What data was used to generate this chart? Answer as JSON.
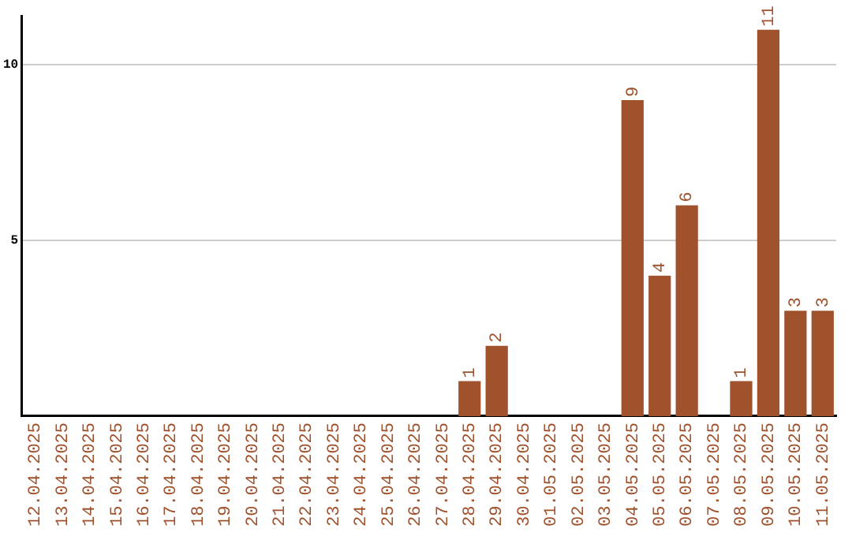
{
  "chart_data": {
    "type": "bar",
    "categories": [
      "12.04.2025",
      "13.04.2025",
      "14.04.2025",
      "15.04.2025",
      "16.04.2025",
      "17.04.2025",
      "18.04.2025",
      "19.04.2025",
      "20.04.2025",
      "21.04.2025",
      "22.04.2025",
      "23.04.2025",
      "24.04.2025",
      "25.04.2025",
      "26.04.2025",
      "27.04.2025",
      "28.04.2025",
      "29.04.2025",
      "30.04.2025",
      "01.05.2025",
      "02.05.2025",
      "03.05.2025",
      "04.05.2025",
      "05.05.2025",
      "06.05.2025",
      "07.05.2025",
      "08.05.2025",
      "09.05.2025",
      "10.05.2025",
      "11.05.2025"
    ],
    "values": [
      0,
      0,
      0,
      0,
      0,
      0,
      0,
      0,
      0,
      0,
      0,
      0,
      0,
      0,
      0,
      0,
      1,
      2,
      0,
      0,
      0,
      0,
      9,
      4,
      6,
      0,
      1,
      11,
      3,
      3
    ],
    "value_labels": [
      null,
      null,
      null,
      null,
      null,
      null,
      null,
      null,
      null,
      null,
      null,
      null,
      null,
      null,
      null,
      null,
      "1",
      "2",
      null,
      null,
      null,
      null,
      "9",
      "4",
      "6",
      null,
      "1",
      "11",
      "3",
      "3"
    ],
    "color": "#a0522d",
    "ylim": [
      0,
      11.4
    ],
    "yticks": [
      5,
      10
    ],
    "grid": "y",
    "legend": false
  }
}
